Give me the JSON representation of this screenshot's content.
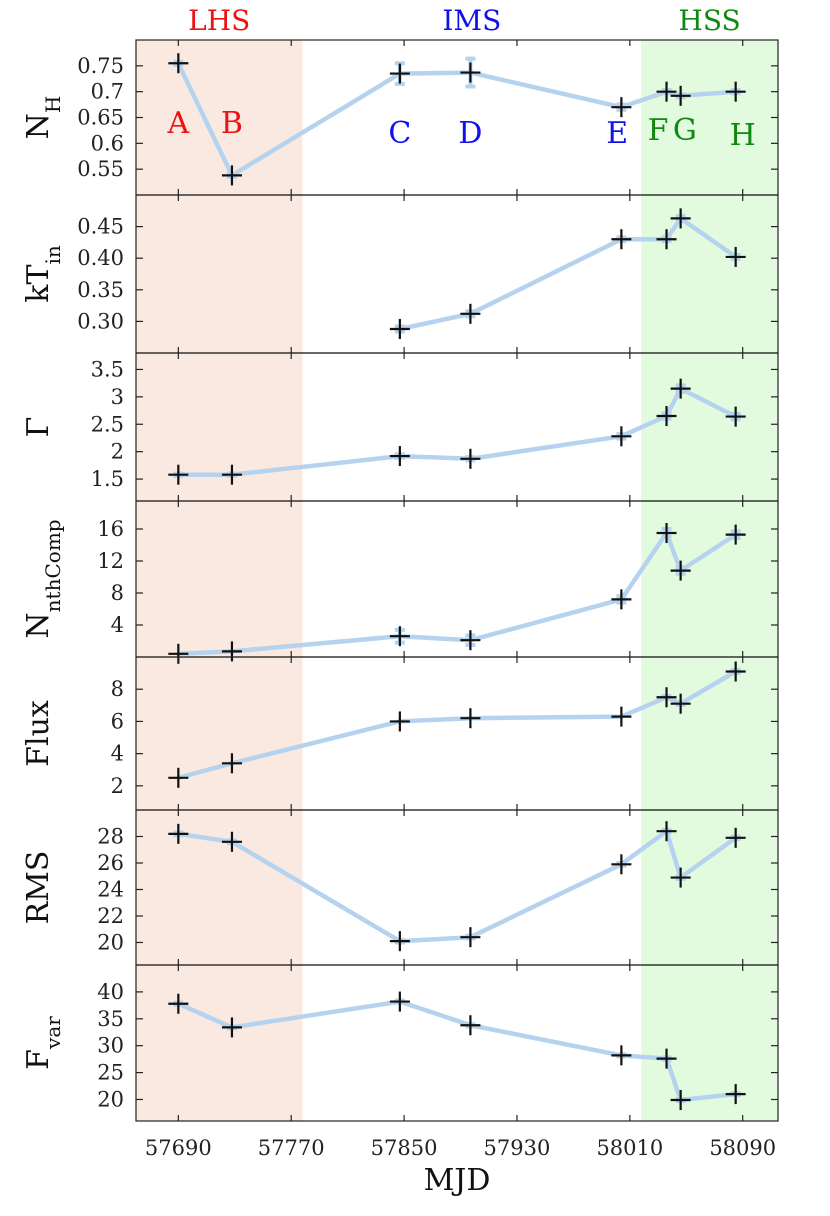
{
  "chart_data": {
    "type": "line",
    "xlabel": "MJD",
    "xlim": [
      57660,
      58115
    ],
    "xticks": [
      57690,
      57770,
      57850,
      57930,
      58010,
      58090
    ],
    "x": [
      57690,
      57728,
      57847,
      57897,
      58004,
      58036,
      58046,
      58085
    ],
    "point_labels": [
      {
        "text": "A",
        "x": 57690,
        "color": "#ee1111"
      },
      {
        "text": "B",
        "x": 57728,
        "color": "#ee1111"
      },
      {
        "text": "C",
        "x": 57847,
        "color": "#1111ee"
      },
      {
        "text": "D",
        "x": 57897,
        "color": "#1111ee"
      },
      {
        "text": "E",
        "x": 58001,
        "color": "#1111ee"
      },
      {
        "text": "F",
        "x": 58030,
        "color": "#118811"
      },
      {
        "text": "G",
        "x": 58049,
        "color": "#118811"
      },
      {
        "text": "H",
        "x": 58090,
        "color": "#118811"
      }
    ],
    "states": [
      {
        "label": "LHS",
        "x_from": 57660,
        "x_to": 57778,
        "fill": "#f9e9e1",
        "color": "#ee1111"
      },
      {
        "label": "IMS",
        "x_from": 57778,
        "x_to": 58018,
        "fill": "#ffffff",
        "color": "#1111ee"
      },
      {
        "label": "HSS",
        "x_from": 58018,
        "x_to": 58115,
        "fill": "#e2fbdf",
        "color": "#118811"
      }
    ],
    "line_color": "#b5d3ee",
    "marker_color": "#111111",
    "panels": [
      {
        "ylabel": "N",
        "ylabel_sub": "H",
        "ylim": [
          0.5,
          0.8
        ],
        "yticks": [
          "0.75",
          "0.7",
          "0.65",
          "0.6",
          "0.55"
        ],
        "values": [
          0.755,
          0.538,
          0.735,
          0.737,
          0.67,
          0.7,
          0.692,
          0.7
        ],
        "errors": [
          0.003,
          0.003,
          0.02,
          0.027,
          0.005,
          0.003,
          0.003,
          0.003
        ]
      },
      {
        "ylabel": "kT",
        "ylabel_sub": "in",
        "ylim": [
          0.25,
          0.5
        ],
        "yticks": [
          "0.45",
          "0.40",
          "0.35",
          "0.30"
        ],
        "values": [
          null,
          null,
          0.288,
          0.312,
          0.43,
          0.43,
          0.463,
          0.402
        ],
        "errors": [
          0,
          0,
          0.004,
          0.004,
          0.003,
          0.003,
          0.004,
          0.003
        ]
      },
      {
        "ylabel": "Γ",
        "ylabel_sub": "",
        "ylim": [
          1.1,
          3.8
        ],
        "yticks": [
          "3.5",
          "3",
          "2.5",
          "2",
          "1.5"
        ],
        "values": [
          1.58,
          1.58,
          1.92,
          1.87,
          2.28,
          2.65,
          3.15,
          2.64
        ],
        "errors": [
          0.02,
          0.02,
          0.03,
          0.03,
          0.04,
          0.05,
          0.06,
          0.05
        ]
      },
      {
        "ylabel": "N",
        "ylabel_sub": "nthComp",
        "ylim": [
          0,
          19.5
        ],
        "yticks": [
          "16",
          "12",
          "8",
          "4"
        ],
        "values": [
          0.4,
          0.7,
          2.6,
          2.1,
          7.2,
          15.5,
          10.8,
          15.3
        ],
        "errors": [
          0.05,
          0.05,
          0.8,
          0.6,
          0.4,
          0.5,
          0.4,
          0.4
        ]
      },
      {
        "ylabel": "Flux",
        "ylabel_sub": "",
        "ylim": [
          0.5,
          10.0
        ],
        "yticks": [
          "8",
          "6",
          "4",
          "2"
        ],
        "values": [
          2.5,
          3.4,
          6.0,
          6.2,
          6.3,
          7.5,
          7.1,
          9.1
        ],
        "errors": [
          0.05,
          0.05,
          0.06,
          0.06,
          0.06,
          0.08,
          0.08,
          0.1
        ]
      },
      {
        "ylabel": "RMS",
        "ylabel_sub": "",
        "ylim": [
          18.3,
          30.0
        ],
        "yticks": [
          "28",
          "26",
          "24",
          "22",
          "20"
        ],
        "values": [
          28.2,
          27.6,
          20.1,
          20.4,
          25.9,
          28.4,
          24.9,
          27.9
        ],
        "errors": [
          0.1,
          0.1,
          0.1,
          0.1,
          0.1,
          0.1,
          0.1,
          0.1
        ]
      },
      {
        "ylabel": "F",
        "ylabel_sub": "var",
        "ylim": [
          16.0,
          45.0
        ],
        "yticks": [
          "40",
          "35",
          "30",
          "25",
          "20"
        ],
        "values": [
          37.8,
          33.4,
          38.2,
          33.8,
          28.2,
          27.6,
          19.9,
          21.0
        ],
        "errors": [
          0.2,
          0.2,
          0.2,
          0.2,
          0.2,
          0.2,
          0.2,
          0.2
        ]
      }
    ]
  }
}
